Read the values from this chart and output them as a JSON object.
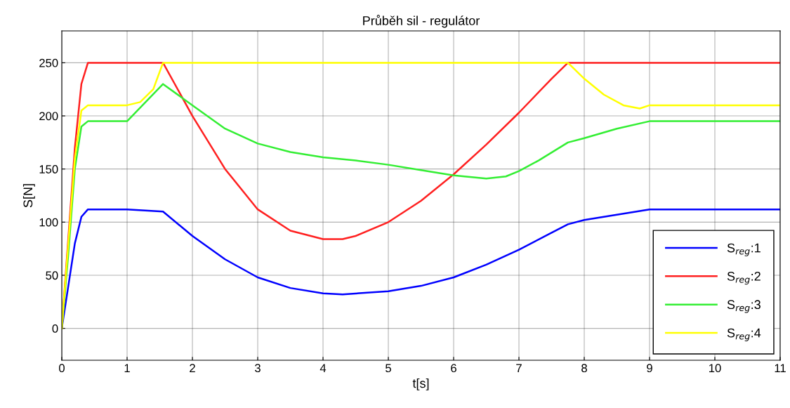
{
  "chart_data": {
    "type": "line",
    "title": "Průběh sil - regulátor",
    "xlabel": "t[s]",
    "ylabel": "S[N]",
    "xlim": [
      0,
      11
    ],
    "xticks": [
      0,
      1,
      2,
      3,
      4,
      5,
      6,
      7,
      8,
      9,
      10,
      11
    ],
    "ylim": [
      -30,
      280
    ],
    "yticks": [
      0,
      50,
      100,
      150,
      200,
      250
    ],
    "grid": true,
    "legend": "bottom right",
    "marker": "none",
    "line_style": "solid",
    "series": [
      {
        "name": "S$_{reg}$:1",
        "color": "#0000ff",
        "x": [
          0,
          0.1,
          0.2,
          0.3,
          0.4,
          1,
          1.55,
          2,
          2.5,
          3,
          3.5,
          4,
          4.3,
          5,
          5.5,
          6,
          6.5,
          7,
          7.5,
          7.75,
          8,
          8.5,
          9,
          11
        ],
        "values": [
          0,
          40,
          80,
          105,
          112,
          112,
          110,
          87,
          65,
          48,
          38,
          33,
          32,
          35,
          40,
          48,
          60,
          74,
          90,
          98,
          102,
          107,
          112,
          112
        ]
      },
      {
        "name": "S$_{reg}$:2",
        "color": "#ff2020",
        "x": [
          0,
          0.2,
          0.3,
          0.4,
          1.55,
          2,
          2.5,
          3,
          3.5,
          4,
          4.3,
          4.5,
          5,
          5.5,
          6,
          6.5,
          7,
          7.5,
          7.75,
          11
        ],
        "values": [
          0,
          170,
          230,
          250,
          250,
          200,
          150,
          112,
          92,
          84,
          84,
          87,
          100,
          120,
          145,
          173,
          203,
          235,
          250,
          250
        ]
      },
      {
        "name": "S$_{reg}$:3",
        "color": "#33ee33",
        "x": [
          0,
          0.1,
          0.2,
          0.3,
          0.4,
          1,
          1.55,
          2,
          2.5,
          3,
          3.5,
          4,
          4.5,
          5,
          5.5,
          6,
          6.5,
          6.8,
          7,
          7.3,
          7.75,
          8,
          8.5,
          9,
          11
        ],
        "values": [
          0,
          70,
          150,
          190,
          195,
          195,
          230,
          210,
          188,
          174,
          166,
          161,
          158,
          154,
          149,
          144,
          141,
          143,
          148,
          158,
          175,
          179,
          188,
          195,
          195
        ]
      },
      {
        "name": "S$_{reg}$:4",
        "color": "#ffff00",
        "x": [
          0,
          0.1,
          0.2,
          0.3,
          0.4,
          1,
          1.2,
          1.4,
          1.55,
          7.75,
          8,
          8.3,
          8.6,
          8.85,
          9,
          11
        ],
        "values": [
          0,
          80,
          160,
          205,
          210,
          210,
          213,
          225,
          250,
          250,
          235,
          220,
          210,
          207,
          210,
          210
        ]
      }
    ]
  }
}
